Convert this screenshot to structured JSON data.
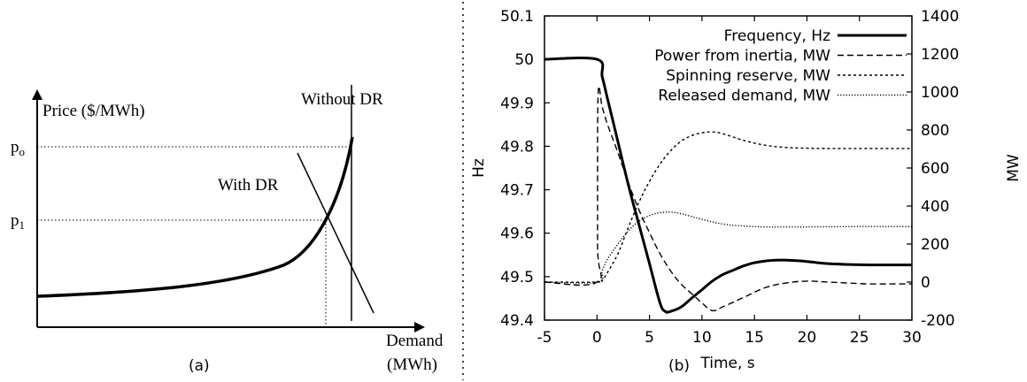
{
  "chart_data": [
    {
      "type": "line",
      "panel_label": "(a)",
      "title": "",
      "xlabel": "Demand",
      "xlabel_unit": "(MWh)",
      "ylabel": "Price ($/MWh)",
      "y_markers": [
        "p_o",
        "p_1"
      ],
      "curve_labels": {
        "without_dr": "Without DR",
        "with_dr": "With DR"
      },
      "axis_ticks": false,
      "description_note_for_marks": "qualitative sketch: convex supply curve and two vertical demand lines"
    },
    {
      "type": "line",
      "panel_label": "(b)",
      "title": "",
      "xlabel": "Time, s",
      "ylabel_left": "Hz",
      "ylabel_right": "MW",
      "xlim": [
        -5,
        30
      ],
      "ylim_left": [
        49.4,
        50.1
      ],
      "ylim_right": [
        -200,
        1400
      ],
      "x_ticks": [
        "-5",
        "0",
        "5",
        "10",
        "15",
        "20",
        "25",
        "30"
      ],
      "y_left_ticks": [
        "49.4",
        "49.5",
        "49.6",
        "49.7",
        "49.8",
        "49.9",
        "50",
        "50.1"
      ],
      "y_right_ticks": [
        "-200",
        "0",
        "200",
        "400",
        "600",
        "800",
        "1000",
        "1200",
        "1400"
      ],
      "legend_position": "top-right",
      "grid": false,
      "series": [
        {
          "name": "Frequency, Hz",
          "axis": "left",
          "style": "solid-thick",
          "x": [
            -5,
            0,
            0.5,
            1,
            1.5,
            2,
            3,
            4,
            5,
            6,
            6.5,
            7,
            8,
            9,
            10,
            11,
            12,
            13,
            14,
            15,
            16,
            17,
            18,
            19,
            20,
            21,
            22,
            24,
            26,
            28,
            30
          ],
          "y": [
            50.0,
            50.0,
            49.96,
            49.91,
            49.86,
            49.81,
            49.71,
            49.62,
            49.53,
            49.44,
            49.42,
            49.42,
            49.43,
            49.45,
            49.47,
            49.49,
            49.505,
            49.515,
            49.525,
            49.532,
            49.536,
            49.538,
            49.538,
            49.537,
            49.535,
            49.532,
            49.53,
            49.528,
            49.527,
            49.527,
            49.527
          ]
        },
        {
          "name": "Power from inertia, MW",
          "axis": "right",
          "style": "dashed",
          "x": [
            -5,
            0,
            0.05,
            0.1,
            0.5,
            1,
            2,
            3,
            4,
            5,
            6,
            7,
            8,
            9,
            10,
            11,
            12,
            14,
            16,
            18,
            20,
            22,
            24,
            26,
            28,
            30
          ],
          "y": [
            0,
            0,
            200,
            980,
            920,
            830,
            680,
            520,
            380,
            260,
            150,
            60,
            -10,
            -60,
            -110,
            -150,
            -130,
            -80,
            -30,
            -5,
            5,
            0,
            -5,
            -10,
            -10,
            -10
          ]
        },
        {
          "name": "Spinning reserve, MW",
          "axis": "right",
          "style": "short-dashed",
          "x": [
            -5,
            0,
            0.5,
            1,
            2,
            3,
            4,
            5,
            6,
            7,
            8,
            9,
            10,
            11,
            12,
            14,
            16,
            18,
            20,
            22,
            25,
            30
          ],
          "y": [
            0,
            0,
            10,
            50,
            150,
            290,
            420,
            530,
            620,
            690,
            740,
            770,
            785,
            790,
            780,
            745,
            720,
            708,
            704,
            703,
            703,
            703
          ]
        },
        {
          "name": "Released demand, MW",
          "axis": "right",
          "style": "dotted",
          "x": [
            -5,
            0,
            0.5,
            1,
            2,
            3,
            4,
            5,
            6,
            7,
            8,
            9,
            10,
            12,
            14,
            16,
            18,
            20,
            25,
            30
          ],
          "y": [
            0,
            0,
            60,
            120,
            200,
            270,
            320,
            350,
            365,
            368,
            360,
            345,
            330,
            305,
            295,
            290,
            290,
            290,
            292,
            292
          ]
        }
      ]
    }
  ]
}
